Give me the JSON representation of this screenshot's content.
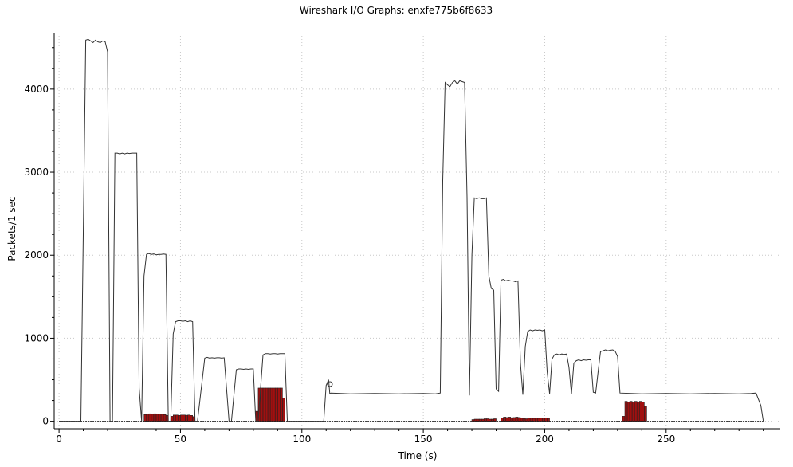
{
  "chart_data": {
    "type": "line",
    "title": "Wireshark I/O Graphs: enxfe775b6f8633",
    "xlabel": "Time (s)",
    "ylabel": "Packets/1 sec",
    "xlim": [
      -2,
      297
    ],
    "ylim": [
      -90,
      4680
    ],
    "x_ticks": [
      0,
      50,
      100,
      150,
      200,
      250
    ],
    "y_ticks": [
      0,
      1000,
      2000,
      3000,
      4000
    ],
    "grid": "dotted",
    "colors": {
      "line": "#333333",
      "bar_fill": "#a01010",
      "bar_stroke": "#222222",
      "grid": "#c8c8c8"
    },
    "series": [
      {
        "type": "line",
        "points": [
          [
            0,
            0
          ],
          [
            9,
            0
          ],
          [
            11,
            4590
          ],
          [
            12,
            4600
          ],
          [
            13,
            4580
          ],
          [
            14,
            4560
          ],
          [
            15,
            4590
          ],
          [
            16,
            4570
          ],
          [
            17,
            4560
          ],
          [
            18,
            4580
          ],
          [
            19,
            4570
          ],
          [
            20,
            4450
          ],
          [
            21,
            0
          ],
          [
            22,
            0
          ],
          [
            23,
            3230
          ],
          [
            24,
            3230
          ],
          [
            25,
            3220
          ],
          [
            26,
            3230
          ],
          [
            27,
            3220
          ],
          [
            28,
            3230
          ],
          [
            29,
            3225
          ],
          [
            30,
            3230
          ],
          [
            31,
            3230
          ],
          [
            32,
            3230
          ],
          [
            33,
            400
          ],
          [
            34,
            0
          ],
          [
            35,
            1750
          ],
          [
            36,
            2010
          ],
          [
            37,
            2020
          ],
          [
            38,
            2010
          ],
          [
            39,
            2015
          ],
          [
            40,
            2005
          ],
          [
            41,
            2010
          ],
          [
            42,
            2010
          ],
          [
            43,
            2015
          ],
          [
            44,
            2010
          ],
          [
            45,
            0
          ],
          [
            46,
            0
          ],
          [
            47,
            1050
          ],
          [
            48,
            1200
          ],
          [
            49,
            1210
          ],
          [
            50,
            1210
          ],
          [
            51,
            1205
          ],
          [
            52,
            1210
          ],
          [
            53,
            1200
          ],
          [
            54,
            1210
          ],
          [
            55,
            1200
          ],
          [
            56,
            0
          ],
          [
            57,
            0
          ],
          [
            60,
            760
          ],
          [
            61,
            770
          ],
          [
            62,
            760
          ],
          [
            63,
            765
          ],
          [
            64,
            760
          ],
          [
            65,
            765
          ],
          [
            66,
            765
          ],
          [
            67,
            760
          ],
          [
            68,
            765
          ],
          [
            70,
            0
          ],
          [
            71,
            0
          ],
          [
            73,
            620
          ],
          [
            74,
            630
          ],
          [
            75,
            630
          ],
          [
            76,
            625
          ],
          [
            77,
            630
          ],
          [
            78,
            625
          ],
          [
            79,
            630
          ],
          [
            80,
            630
          ],
          [
            81,
            0
          ],
          [
            82,
            0
          ],
          [
            84,
            800
          ],
          [
            85,
            815
          ],
          [
            86,
            815
          ],
          [
            87,
            810
          ],
          [
            88,
            815
          ],
          [
            89,
            815
          ],
          [
            90,
            810
          ],
          [
            91,
            815
          ],
          [
            92,
            815
          ],
          [
            93,
            815
          ],
          [
            94,
            0
          ],
          [
            95,
            0
          ],
          [
            109,
            0
          ],
          [
            110,
            430
          ],
          [
            111,
            500
          ],
          [
            111.5,
            330
          ],
          [
            112,
            340
          ],
          [
            120,
            330
          ],
          [
            130,
            335
          ],
          [
            140,
            330
          ],
          [
            150,
            335
          ],
          [
            155,
            330
          ],
          [
            157,
            340
          ],
          [
            158,
            2900
          ],
          [
            159,
            4080
          ],
          [
            160,
            4050
          ],
          [
            161,
            4030
          ],
          [
            162,
            4080
          ],
          [
            163,
            4100
          ],
          [
            164,
            4060
          ],
          [
            165,
            4100
          ],
          [
            166,
            4090
          ],
          [
            167,
            4080
          ],
          [
            168,
            2700
          ],
          [
            169,
            310
          ],
          [
            170,
            2000
          ],
          [
            171,
            2690
          ],
          [
            172,
            2680
          ],
          [
            173,
            2690
          ],
          [
            174,
            2680
          ],
          [
            175,
            2680
          ],
          [
            176,
            2690
          ],
          [
            177,
            1750
          ],
          [
            178,
            1600
          ],
          [
            179,
            1580
          ],
          [
            180,
            390
          ],
          [
            181,
            360
          ],
          [
            182,
            1700
          ],
          [
            183,
            1710
          ],
          [
            184,
            1690
          ],
          [
            185,
            1700
          ],
          [
            186,
            1690
          ],
          [
            187,
            1690
          ],
          [
            188,
            1680
          ],
          [
            189,
            1690
          ],
          [
            190,
            700
          ],
          [
            191,
            320
          ],
          [
            192,
            900
          ],
          [
            193,
            1080
          ],
          [
            194,
            1100
          ],
          [
            195,
            1090
          ],
          [
            196,
            1100
          ],
          [
            197,
            1095
          ],
          [
            198,
            1100
          ],
          [
            199,
            1090
          ],
          [
            200,
            1100
          ],
          [
            201,
            600
          ],
          [
            202,
            330
          ],
          [
            203,
            750
          ],
          [
            204,
            800
          ],
          [
            205,
            810
          ],
          [
            206,
            800
          ],
          [
            207,
            810
          ],
          [
            208,
            805
          ],
          [
            209,
            810
          ],
          [
            210,
            650
          ],
          [
            211,
            330
          ],
          [
            212,
            700
          ],
          [
            213,
            730
          ],
          [
            214,
            740
          ],
          [
            215,
            730
          ],
          [
            216,
            740
          ],
          [
            217,
            735
          ],
          [
            218,
            740
          ],
          [
            219,
            740
          ],
          [
            220,
            350
          ],
          [
            221,
            340
          ],
          [
            222,
            600
          ],
          [
            223,
            840
          ],
          [
            224,
            850
          ],
          [
            225,
            860
          ],
          [
            226,
            850
          ],
          [
            227,
            855
          ],
          [
            228,
            860
          ],
          [
            229,
            845
          ],
          [
            230,
            780
          ],
          [
            231,
            340
          ],
          [
            240,
            330
          ],
          [
            250,
            335
          ],
          [
            260,
            330
          ],
          [
            270,
            335
          ],
          [
            280,
            330
          ],
          [
            285,
            335
          ],
          [
            287,
            340
          ],
          [
            289,
            190
          ],
          [
            290,
            0
          ]
        ]
      },
      {
        "type": "bar",
        "x": [
          35,
          36,
          37,
          38,
          39,
          40,
          41,
          42,
          43,
          44,
          46,
          47,
          48,
          49,
          50,
          51,
          52,
          53,
          54,
          55,
          81,
          82,
          83,
          84,
          85,
          86,
          87,
          88,
          89,
          90,
          91,
          92,
          170,
          171,
          172,
          173,
          174,
          175,
          176,
          177,
          178,
          179,
          182,
          183,
          184,
          185,
          186,
          187,
          188,
          189,
          190,
          191,
          192,
          193,
          194,
          195,
          196,
          197,
          198,
          199,
          200,
          201,
          232,
          233,
          234,
          235,
          236,
          237,
          238,
          239,
          240,
          241
        ],
        "values": [
          80,
          85,
          90,
          85,
          90,
          85,
          88,
          85,
          80,
          70,
          60,
          75,
          75,
          70,
          75,
          75,
          72,
          75,
          70,
          55,
          120,
          400,
          400,
          400,
          400,
          400,
          400,
          400,
          400,
          400,
          400,
          280,
          20,
          25,
          25,
          25,
          25,
          30,
          30,
          25,
          25,
          30,
          40,
          50,
          45,
          50,
          40,
          45,
          50,
          45,
          40,
          35,
          30,
          40,
          40,
          35,
          40,
          35,
          40,
          40,
          40,
          35,
          60,
          240,
          230,
          240,
          230,
          240,
          230,
          240,
          230,
          180
        ]
      }
    ]
  }
}
